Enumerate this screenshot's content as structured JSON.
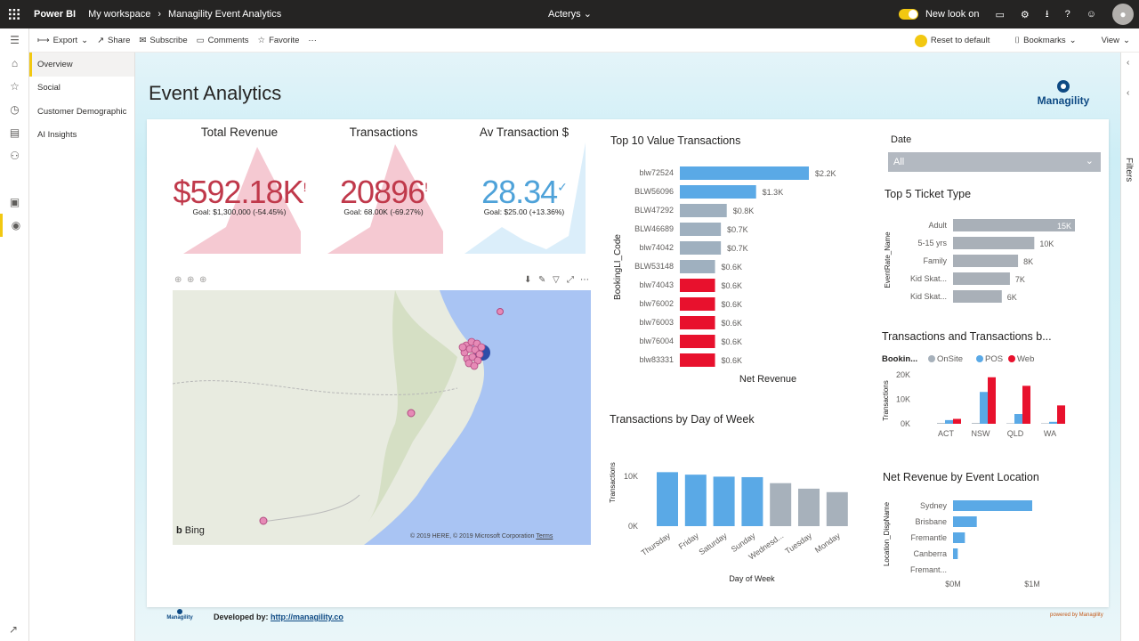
{
  "topbar": {
    "brand": "Power BI",
    "breadcrumb": [
      "My workspace",
      "Managility Event Analytics"
    ],
    "center": "Acterys",
    "new_look": "New look on"
  },
  "actions": {
    "export": "Export",
    "share": "Share",
    "subscribe": "Subscribe",
    "comments": "Comments",
    "favorite": "Favorite",
    "more": "···",
    "reset": "Reset to default",
    "bookmarks": "Bookmarks",
    "view": "View"
  },
  "pages": [
    "Overview",
    "Social",
    "Customer Demographic",
    "AI Insights"
  ],
  "filters_label": "Filters",
  "report": {
    "title": "Event Analytics",
    "logo_text": "Managility"
  },
  "kpis": [
    {
      "title": "Total Revenue",
      "value": "$592.18K",
      "flag": "!",
      "goal": "Goal: $1,300,000 (-54.45%)",
      "status": "red"
    },
    {
      "title": "Transactions",
      "value": "20896",
      "flag": "!",
      "goal": "Goal: 68.00K (-69.27%)",
      "status": "red"
    },
    {
      "title": "Av Transaction $",
      "value": "28.34",
      "flag": "✓",
      "goal": "Goal: $25.00 (+13.36%)",
      "status": "blue"
    }
  ],
  "map": {
    "bing": "Bing",
    "attribution": "© 2019 HERE, © 2019 Microsoft Corporation",
    "terms": "Terms"
  },
  "slicer": {
    "label": "Date",
    "value": "All"
  },
  "footer": {
    "logo": "Managility",
    "developed_by": "Developed by:",
    "link": "http://managility.co",
    "powered": "powered by Managility"
  },
  "colors": {
    "blue": "#5aa9e6",
    "grey": "#9fb0bf",
    "red": "#e8112d",
    "slate": "#a7b1bb",
    "kpi_red": "#c0394b",
    "kpi_blue": "#4ea2d9"
  },
  "chart_data": [
    {
      "type": "bar",
      "title": "Top 10 Value Transactions",
      "ylabel": "BookingLI_Code",
      "xlabel": "Net Revenue",
      "categories": [
        "blw72524",
        "BLW56096",
        "BLW47292",
        "BLW46689",
        "blw74042",
        "BLW53148",
        "blw74043",
        "blw76002",
        "blw76003",
        "blw76004",
        "blw83331"
      ],
      "values": [
        2200,
        1300,
        800,
        700,
        700,
        600,
        600,
        600,
        600,
        600,
        600
      ],
      "labels": [
        "$2.2K",
        "$1.3K",
        "$0.8K",
        "$0.7K",
        "$0.7K",
        "$0.6K",
        "$0.6K",
        "$0.6K",
        "$0.6K",
        "$0.6K",
        "$0.6K"
      ],
      "bar_colors": [
        "blue",
        "blue",
        "grey",
        "grey",
        "grey",
        "grey",
        "red",
        "red",
        "red",
        "red",
        "red"
      ],
      "orientation": "horizontal"
    },
    {
      "type": "bar",
      "title": "Transactions by Day of Week",
      "ylabel": "Transactions",
      "xlabel": "Day of Week",
      "categories": [
        "Thursday",
        "Friday",
        "Saturday",
        "Sunday",
        "Wednesd...",
        "Tuesday",
        "Monday"
      ],
      "values": [
        10800,
        10300,
        9900,
        9800,
        8600,
        7500,
        6800
      ],
      "yticks": [
        "10K",
        "0K"
      ],
      "ylim": [
        0,
        13000
      ],
      "bar_colors": [
        "blue",
        "blue",
        "blue",
        "blue",
        "grey",
        "grey",
        "grey"
      ]
    },
    {
      "type": "bar",
      "title": "Top 5 Ticket Type",
      "ylabel": "EventRate_Name",
      "categories": [
        "Adult",
        "5-15 yrs",
        "Family",
        "Kid Skat...",
        "Kid Skat..."
      ],
      "values": [
        15000,
        10000,
        8000,
        7000,
        6000
      ],
      "labels": [
        "15K",
        "10K",
        "8K",
        "7K",
        "6K"
      ],
      "orientation": "horizontal"
    },
    {
      "type": "bar",
      "title": "Transactions and Transactions b...",
      "ylabel": "Transactions",
      "legend_title": "Bookin...",
      "categories": [
        "ACT",
        "NSW",
        "QLD",
        "WA"
      ],
      "yticks": [
        "20K",
        "10K",
        "0K"
      ],
      "ylim": [
        0,
        20000
      ],
      "series": [
        {
          "name": "OnSite",
          "values": [
            300,
            300,
            200,
            200
          ]
        },
        {
          "name": "POS",
          "values": [
            1500,
            13000,
            4000,
            800
          ]
        },
        {
          "name": "Web",
          "values": [
            2000,
            19000,
            15500,
            7500
          ]
        }
      ]
    },
    {
      "type": "bar",
      "title": "Net Revenue by Event Location",
      "ylabel": "Location_DispName",
      "categories": [
        "Sydney",
        "Brisbane",
        "Fremantle",
        "Canberra",
        "Fremant..."
      ],
      "values": [
        1000000,
        300000,
        150000,
        60000,
        0
      ],
      "xticks": [
        "$0M",
        "$1M"
      ],
      "orientation": "horizontal"
    }
  ]
}
